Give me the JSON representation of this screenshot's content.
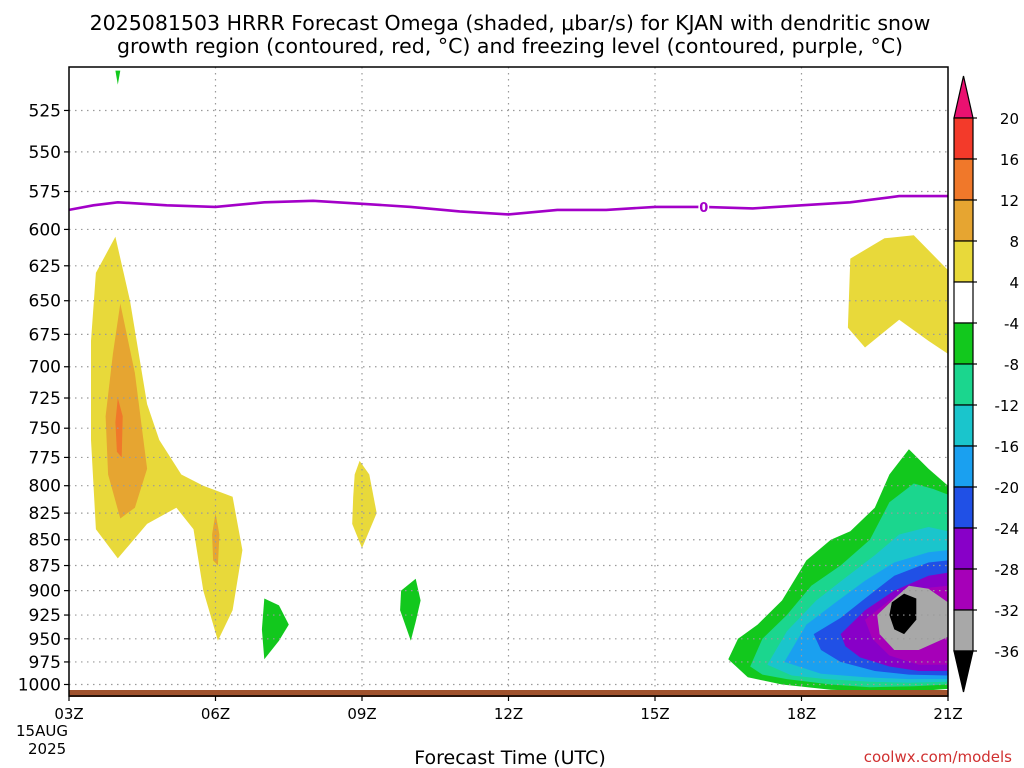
{
  "title_line1": "2025081503 HRRR Forecast Omega (shaded, μbar/s) for KJAN with dendritic snow",
  "title_line2": "growth region (contoured, red, °C) and freezing level (contoured, purple, °C)",
  "footer_credit": "coolwx.com/models",
  "colors": {
    "freezing_line": "#a300c8",
    "ground_bar": "#a0522d",
    "grid": "#9a9a9a"
  },
  "chart_data": {
    "type": "heatmap",
    "xlabel": "Forecast Time (UTC)",
    "x_ticks": [
      "03Z",
      "06Z",
      "09Z",
      "12Z",
      "15Z",
      "18Z",
      "21Z"
    ],
    "x_tick_hours": [
      3,
      6,
      9,
      12,
      15,
      18,
      21
    ],
    "x_date_line1": "15AUG",
    "x_date_line2": "2025",
    "xlim_hours": [
      3,
      21
    ],
    "y_ticks": [
      525,
      550,
      575,
      600,
      625,
      650,
      675,
      700,
      725,
      750,
      775,
      800,
      825,
      850,
      875,
      900,
      925,
      950,
      975,
      1000
    ],
    "ylim_hpa": [
      500,
      1013
    ],
    "y_scale": "log-pressure",
    "grid": true,
    "colorbar": {
      "labels": [
        "20",
        "16",
        "12",
        "8",
        "4",
        "-4",
        "-8",
        "-12",
        "-16",
        "-20",
        "-24",
        "-28",
        "-32",
        "-36"
      ],
      "bins": [
        {
          "color": "#ea1170"
        },
        {
          "color": "#f33a2a"
        },
        {
          "color": "#f0782a"
        },
        {
          "color": "#e6a531"
        },
        {
          "color": "#e8d93a"
        },
        {
          "color": "#ffffff"
        },
        {
          "color": "#12c81d"
        },
        {
          "color": "#1bd68e"
        },
        {
          "color": "#1ac5cc"
        },
        {
          "color": "#1aa0f0"
        },
        {
          "color": "#2050e6"
        },
        {
          "color": "#8800c8"
        },
        {
          "color": "#a600b8"
        },
        {
          "color": "#a8a8a8"
        },
        {
          "color": "#000000"
        }
      ]
    },
    "freezing_level_label": "0",
    "freezing_level": [
      {
        "t": 3.0,
        "p": 587
      },
      {
        "t": 3.5,
        "p": 584
      },
      {
        "t": 4.0,
        "p": 582
      },
      {
        "t": 5.0,
        "p": 584
      },
      {
        "t": 6.0,
        "p": 585
      },
      {
        "t": 7.0,
        "p": 582
      },
      {
        "t": 8.0,
        "p": 581
      },
      {
        "t": 9.0,
        "p": 583
      },
      {
        "t": 10.0,
        "p": 585
      },
      {
        "t": 11.0,
        "p": 588
      },
      {
        "t": 12.0,
        "p": 590
      },
      {
        "t": 13.0,
        "p": 587
      },
      {
        "t": 14.0,
        "p": 587
      },
      {
        "t": 15.0,
        "p": 585
      },
      {
        "t": 16.0,
        "p": 585
      },
      {
        "t": 17.0,
        "p": 586
      },
      {
        "t": 18.0,
        "p": 584
      },
      {
        "t": 19.0,
        "p": 582
      },
      {
        "t": 20.0,
        "p": 578
      },
      {
        "t": 21.0,
        "p": 578
      }
    ],
    "surface_pressure": 1013,
    "regions": [
      {
        "color": "#e8d93a",
        "points": [
          [
            3.55,
            630
          ],
          [
            3.95,
            605
          ],
          [
            4.25,
            650
          ],
          [
            4.6,
            730
          ],
          [
            4.85,
            760
          ],
          [
            5.3,
            790
          ],
          [
            5.75,
            800
          ],
          [
            6.35,
            810
          ],
          [
            6.55,
            860
          ],
          [
            6.35,
            920
          ],
          [
            6.05,
            952
          ],
          [
            5.75,
            900
          ],
          [
            5.55,
            840
          ],
          [
            5.2,
            820
          ],
          [
            4.6,
            835
          ],
          [
            4.0,
            868
          ],
          [
            3.55,
            840
          ],
          [
            3.45,
            760
          ],
          [
            3.45,
            680
          ]
        ]
      },
      {
        "color": "#e6a531",
        "points": [
          [
            3.9,
            690
          ],
          [
            4.05,
            652
          ],
          [
            4.35,
            705
          ],
          [
            4.6,
            785
          ],
          [
            4.35,
            820
          ],
          [
            4.05,
            830
          ],
          [
            3.8,
            790
          ],
          [
            3.75,
            740
          ]
        ]
      },
      {
        "color": "#f0782a",
        "points": [
          [
            4.0,
            725
          ],
          [
            4.1,
            740
          ],
          [
            4.08,
            775
          ],
          [
            3.98,
            770
          ],
          [
            3.95,
            745
          ]
        ]
      },
      {
        "color": "#e6a531",
        "points": [
          [
            6.0,
            825
          ],
          [
            6.08,
            845
          ],
          [
            6.05,
            875
          ],
          [
            5.95,
            870
          ],
          [
            5.93,
            845
          ]
        ]
      },
      {
        "color": "#e8d93a",
        "points": [
          [
            8.85,
            790
          ],
          [
            8.95,
            778
          ],
          [
            9.15,
            790
          ],
          [
            9.3,
            825
          ],
          [
            9.0,
            858
          ],
          [
            8.8,
            835
          ],
          [
            8.82,
            810
          ]
        ]
      },
      {
        "color": "#e8d93a",
        "points": [
          [
            19.0,
            620
          ],
          [
            19.7,
            606
          ],
          [
            20.3,
            604
          ],
          [
            21.0,
            628
          ],
          [
            21.0,
            690
          ],
          [
            20.6,
            680
          ],
          [
            20.0,
            664
          ],
          [
            19.3,
            685
          ],
          [
            18.95,
            670
          ]
        ]
      },
      {
        "color": "#12c81d",
        "points": [
          [
            7.0,
            908
          ],
          [
            7.3,
            915
          ],
          [
            7.5,
            935
          ],
          [
            7.3,
            952
          ],
          [
            7.0,
            972
          ],
          [
            6.95,
            940
          ]
        ]
      },
      {
        "color": "#12c81d",
        "points": [
          [
            9.8,
            900
          ],
          [
            10.1,
            888
          ],
          [
            10.2,
            910
          ],
          [
            10.1,
            932
          ],
          [
            10.0,
            952
          ],
          [
            9.78,
            920
          ]
        ]
      },
      {
        "color": "#12c81d",
        "points": [
          [
            16.5,
            972
          ],
          [
            16.7,
            950
          ],
          [
            17.1,
            935
          ],
          [
            17.6,
            910
          ],
          [
            18.1,
            870
          ],
          [
            18.6,
            850
          ],
          [
            19.0,
            842
          ],
          [
            19.5,
            820
          ],
          [
            19.8,
            790
          ],
          [
            20.2,
            768
          ],
          [
            20.6,
            785
          ],
          [
            21.0,
            800
          ],
          [
            21.0,
            1005
          ],
          [
            20.5,
            1007
          ],
          [
            19.6,
            1008
          ],
          [
            18.6,
            1006
          ],
          [
            17.6,
            1000
          ],
          [
            16.9,
            992
          ]
        ]
      },
      {
        "color": "#1bd68e",
        "points": [
          [
            16.95,
            980
          ],
          [
            17.2,
            950
          ],
          [
            17.7,
            925
          ],
          [
            18.2,
            895
          ],
          [
            18.8,
            875
          ],
          [
            19.4,
            850
          ],
          [
            19.8,
            815
          ],
          [
            20.3,
            798
          ],
          [
            20.7,
            803
          ],
          [
            21.0,
            808
          ],
          [
            21.0,
            1000
          ],
          [
            20.3,
            1002
          ],
          [
            19.4,
            1003
          ],
          [
            18.6,
            1000
          ],
          [
            17.7,
            994
          ],
          [
            17.2,
            989
          ]
        ]
      },
      {
        "color": "#1ac5cc",
        "points": [
          [
            17.3,
            978
          ],
          [
            17.7,
            942
          ],
          [
            18.3,
            910
          ],
          [
            18.9,
            887
          ],
          [
            19.5,
            865
          ],
          [
            20.0,
            845
          ],
          [
            20.6,
            838
          ],
          [
            21.0,
            842
          ],
          [
            21.0,
            997
          ],
          [
            20.2,
            998
          ],
          [
            19.4,
            997
          ],
          [
            18.5,
            994
          ],
          [
            17.8,
            990
          ]
        ]
      },
      {
        "color": "#1aa0f0",
        "points": [
          [
            17.65,
            975
          ],
          [
            18.1,
            935
          ],
          [
            18.7,
            912
          ],
          [
            19.3,
            890
          ],
          [
            19.9,
            872
          ],
          [
            20.6,
            862
          ],
          [
            21.0,
            860
          ],
          [
            21.0,
            994
          ],
          [
            20.2,
            994
          ],
          [
            19.3,
            992
          ],
          [
            18.4,
            988
          ]
        ]
      },
      {
        "color": "#2050e6",
        "points": [
          [
            18.25,
            945
          ],
          [
            18.8,
            928
          ],
          [
            19.3,
            908
          ],
          [
            19.9,
            885
          ],
          [
            20.6,
            872
          ],
          [
            21.0,
            870
          ],
          [
            21.0,
            990
          ],
          [
            20.2,
            989
          ],
          [
            19.5,
            985
          ],
          [
            18.8,
            975
          ],
          [
            18.4,
            962
          ]
        ]
      },
      {
        "color": "#8800c8",
        "points": [
          [
            18.8,
            945
          ],
          [
            19.3,
            920
          ],
          [
            19.9,
            900
          ],
          [
            20.6,
            885
          ],
          [
            21.0,
            882
          ],
          [
            21.0,
            985
          ],
          [
            20.4,
            985
          ],
          [
            19.8,
            980
          ],
          [
            19.2,
            970
          ],
          [
            18.9,
            958
          ]
        ]
      },
      {
        "color": "#a600b8",
        "points": [
          [
            19.3,
            930
          ],
          [
            19.8,
            910
          ],
          [
            20.4,
            898
          ],
          [
            21.0,
            895
          ],
          [
            21.0,
            978
          ],
          [
            20.4,
            978
          ],
          [
            19.8,
            968
          ],
          [
            19.45,
            950
          ]
        ]
      },
      {
        "color": "#a8a8a8",
        "points": [
          [
            19.55,
            925
          ],
          [
            19.9,
            908
          ],
          [
            20.2,
            895
          ],
          [
            20.6,
            898
          ],
          [
            21.0,
            912
          ],
          [
            21.0,
            948
          ],
          [
            20.4,
            962
          ],
          [
            19.9,
            962
          ],
          [
            19.6,
            945
          ]
        ]
      },
      {
        "color": "#000000",
        "points": [
          [
            19.85,
            912
          ],
          [
            20.1,
            903
          ],
          [
            20.35,
            908
          ],
          [
            20.35,
            930
          ],
          [
            20.1,
            945
          ],
          [
            19.9,
            940
          ],
          [
            19.8,
            925
          ]
        ]
      },
      {
        "color": "#12c81d",
        "points": [
          [
            3.95,
            502
          ],
          [
            4.05,
            502
          ],
          [
            4.0,
            510
          ]
        ]
      }
    ]
  }
}
